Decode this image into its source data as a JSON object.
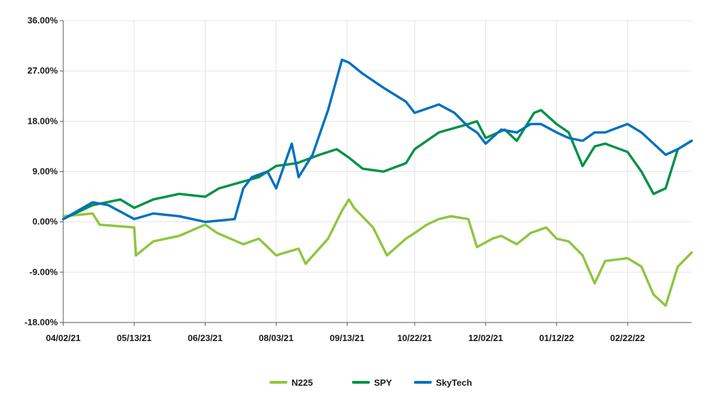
{
  "chart_data": {
    "type": "line",
    "title": "",
    "xlabel": "",
    "ylabel": "",
    "x_ticks": [
      "04/02/21",
      "05/13/21",
      "06/23/21",
      "08/03/21",
      "09/13/21",
      "10/22/21",
      "12/02/21",
      "01/12/22",
      "02/22/22"
    ],
    "y_ticks": [
      "36.00%",
      "27.00%",
      "18.00%",
      "9.00%",
      "0.00%",
      "-9.00%",
      "-18.00%"
    ],
    "ylim": [
      -18,
      36
    ],
    "xlim": [
      "04/02/21",
      "03/31/22"
    ],
    "grid": true,
    "legend_position": "bottom-center",
    "series": [
      {
        "name": "N225",
        "color": "#8dc63f",
        "x": [
          "04/02/21",
          "04/19/21",
          "04/23/21",
          "05/13/21",
          "05/14/21",
          "05/24/21",
          "06/08/21",
          "06/23/21",
          "06/30/21",
          "07/15/21",
          "07/24/21",
          "08/03/21",
          "08/08/21",
          "08/16/21",
          "08/20/21",
          "09/02/21",
          "09/10/21",
          "09/14/21",
          "09/17/21",
          "09/28/21",
          "10/06/21",
          "10/17/21",
          "10/22/21",
          "10/29/21",
          "11/05/21",
          "11/12/21",
          "11/22/21",
          "11/27/21",
          "12/06/21",
          "12/11/21",
          "12/20/21",
          "12/28/21",
          "01/06/22",
          "01/12/22",
          "01/19/22",
          "01/27/22",
          "02/03/22",
          "02/09/22",
          "02/22/22",
          "03/02/22",
          "03/09/22",
          "03/16/22",
          "03/23/22",
          "03/31/22"
        ],
        "values": [
          1.0,
          1.5,
          -0.5,
          -1.0,
          -6.0,
          -3.5,
          -2.5,
          -0.5,
          -2.0,
          -4.0,
          -3.0,
          -6.0,
          -5.5,
          -4.8,
          -7.5,
          -3.0,
          2.0,
          4.0,
          2.5,
          -1.0,
          -6.0,
          -3.0,
          -2.0,
          -0.5,
          0.5,
          1.0,
          0.5,
          -4.5,
          -3.0,
          -2.5,
          -4.0,
          -2.0,
          -1.0,
          -3.0,
          -3.5,
          -6.0,
          -11.0,
          -7.0,
          -6.5,
          -8.0,
          -13.0,
          -15.0,
          -8.0,
          -5.5
        ]
      },
      {
        "name": "SPY",
        "color": "#009245",
        "x": [
          "04/02/21",
          "04/19/21",
          "05/05/21",
          "05/13/21",
          "05/24/21",
          "06/08/21",
          "06/23/21",
          "07/01/21",
          "07/24/21",
          "08/03/21",
          "08/15/21",
          "08/28/21",
          "09/07/21",
          "09/14/21",
          "09/22/21",
          "10/04/21",
          "10/17/21",
          "10/22/21",
          "11/05/21",
          "11/22/21",
          "11/27/21",
          "12/02/21",
          "12/13/21",
          "12/20/21",
          "12/30/21",
          "01/03/22",
          "01/12/22",
          "01/19/22",
          "01/27/22",
          "02/03/22",
          "02/09/22",
          "02/22/22",
          "03/02/22",
          "03/09/22",
          "03/16/22",
          "03/23/22",
          "03/31/22"
        ],
        "values": [
          0.5,
          3.0,
          4.0,
          2.5,
          4.0,
          5.0,
          4.5,
          6.0,
          8.0,
          10.0,
          10.5,
          12.0,
          13.0,
          11.5,
          9.5,
          9.0,
          10.5,
          13.0,
          16.0,
          17.5,
          18.0,
          15.0,
          16.5,
          14.5,
          19.5,
          20.0,
          17.5,
          16.0,
          10.0,
          13.5,
          14.0,
          12.5,
          9.0,
          5.0,
          6.0,
          13.0,
          14.5
        ]
      },
      {
        "name": "SkyTech",
        "color": "#0070c0",
        "x": [
          "04/02/21",
          "04/19/21",
          "04/28/21",
          "05/13/21",
          "05/24/21",
          "06/08/21",
          "06/23/21",
          "07/10/21",
          "07/15/21",
          "07/20/21",
          "07/29/21",
          "08/03/21",
          "08/12/21",
          "08/16/21",
          "08/24/21",
          "09/02/21",
          "09/10/21",
          "09/14/21",
          "09/22/21",
          "10/04/21",
          "10/17/21",
          "10/22/21",
          "11/05/21",
          "11/14/21",
          "11/22/21",
          "11/27/21",
          "12/02/21",
          "12/11/21",
          "12/20/21",
          "12/28/21",
          "01/03/22",
          "01/12/22",
          "01/19/22",
          "01/27/22",
          "02/03/22",
          "02/09/22",
          "02/22/22",
          "03/02/22",
          "03/09/22",
          "03/16/22",
          "03/23/22",
          "03/31/22"
        ],
        "values": [
          0.5,
          3.5,
          3.0,
          0.5,
          1.5,
          1.0,
          0.0,
          0.5,
          6.0,
          8.0,
          9.0,
          6.0,
          14.0,
          8.0,
          12.0,
          20.0,
          29.0,
          28.5,
          26.5,
          24.0,
          21.5,
          19.5,
          21.0,
          19.5,
          17.0,
          16.0,
          14.0,
          16.5,
          16.0,
          17.5,
          17.5,
          16.0,
          15.0,
          14.5,
          16.0,
          16.0,
          17.5,
          16.0,
          14.0,
          12.0,
          13.0,
          14.5
        ]
      }
    ]
  }
}
